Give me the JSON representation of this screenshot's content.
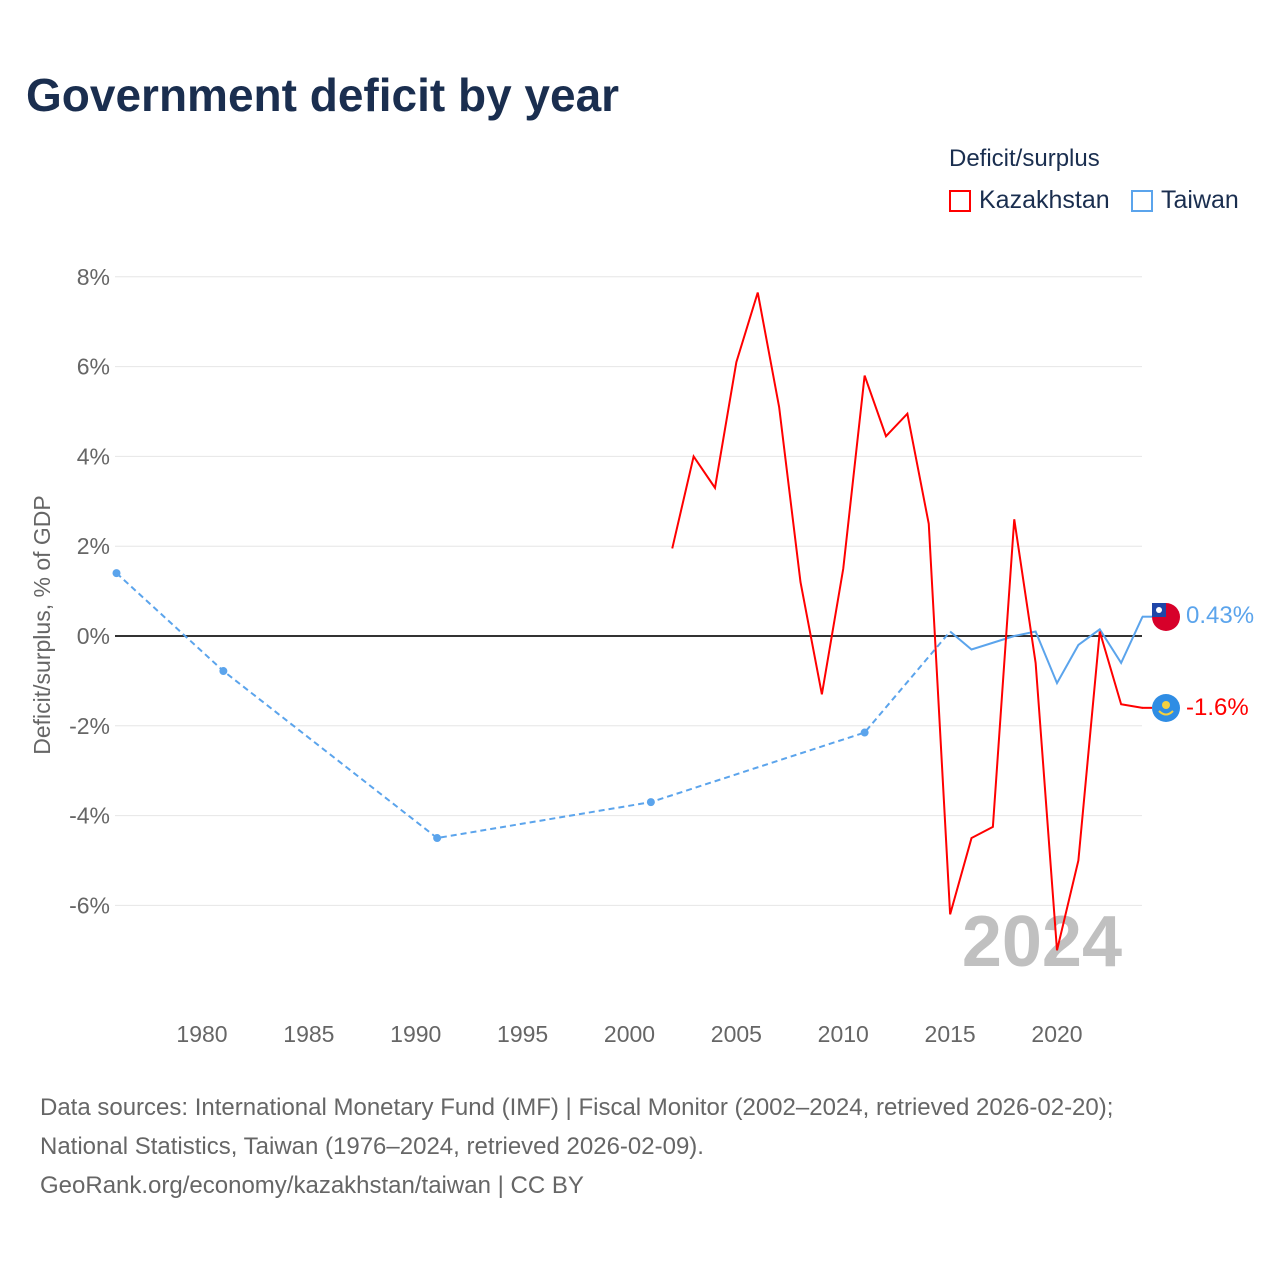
{
  "title": "Government deficit by year",
  "legend": {
    "title": "Deficit/surplus",
    "items": [
      {
        "label": "Kazakhstan",
        "color": "#ff0000"
      },
      {
        "label": "Taiwan",
        "color": "#5ba4ec"
      }
    ]
  },
  "watermark_year": "2024",
  "footer": [
    "Data sources: International Monetary Fund (IMF) | Fiscal Monitor (2002–2024, retrieved 2026-02-20);",
    "National Statistics, Taiwan (1976–2024, retrieved 2026-02-09).",
    "GeoRank.org/economy/kazakhstan/taiwan | CC BY"
  ],
  "chart_data": {
    "type": "line",
    "title": "Government deficit by year",
    "xlabel": "",
    "ylabel": "Deficit/surplus, % of GDP",
    "xlim": [
      1976,
      2024
    ],
    "ylim": [
      -8,
      8
    ],
    "xticks": [
      1980,
      1985,
      1990,
      1995,
      2000,
      2005,
      2010,
      2015,
      2020
    ],
    "yticks": [
      {
        "v": 8,
        "label": "8%"
      },
      {
        "v": 6,
        "label": "6%"
      },
      {
        "v": 4,
        "label": "4%"
      },
      {
        "v": 2,
        "label": "2%"
      },
      {
        "v": 0,
        "label": "0%"
      },
      {
        "v": -2,
        "label": "-2%"
      },
      {
        "v": -4,
        "label": "-4%"
      },
      {
        "v": -6,
        "label": "-6%"
      }
    ],
    "series": [
      {
        "name": "Kazakhstan",
        "color": "#ff0000",
        "end_label": "-1.6%",
        "x": [
          2002,
          2003,
          2004,
          2005,
          2006,
          2007,
          2008,
          2009,
          2010,
          2011,
          2012,
          2013,
          2014,
          2015,
          2016,
          2017,
          2018,
          2019,
          2020,
          2021,
          2022,
          2023,
          2024
        ],
        "y": [
          1.95,
          4.0,
          3.3,
          6.1,
          7.65,
          5.1,
          1.2,
          -1.3,
          1.5,
          5.8,
          4.45,
          4.95,
          2.5,
          -6.2,
          -4.5,
          -4.25,
          2.6,
          -0.6,
          -7.0,
          -5.0,
          0.1,
          -1.52,
          -1.6
        ]
      },
      {
        "name": "Taiwan",
        "color": "#5ba4ec",
        "end_label": "0.43%",
        "sparse_x": [
          1976,
          1981,
          1991,
          2001,
          2011,
          2015
        ],
        "sparse_y": [
          1.4,
          -0.78,
          -4.5,
          -3.7,
          -2.15,
          0.1
        ],
        "x": [
          2015,
          2016,
          2017,
          2018,
          2019,
          2020,
          2021,
          2022,
          2023,
          2024
        ],
        "y": [
          0.1,
          -0.3,
          -0.15,
          0.0,
          0.1,
          -1.05,
          -0.2,
          0.15,
          -0.6,
          0.43
        ]
      }
    ]
  }
}
